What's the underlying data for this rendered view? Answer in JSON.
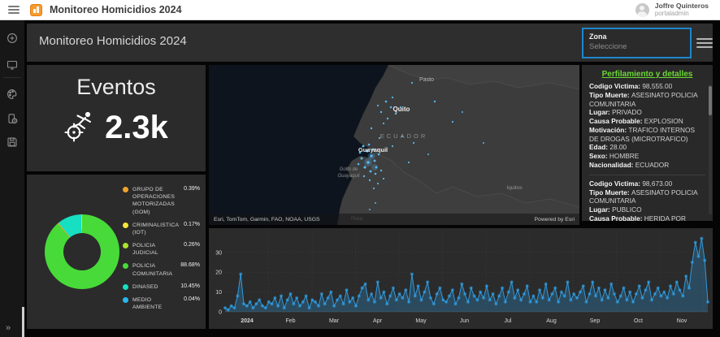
{
  "app_header": {
    "title": "Monitoreo Homicidios 2024",
    "user_name": "Joffre Quinteros",
    "user_role": "portaladmin"
  },
  "sidebar": {
    "icons": [
      "add-element",
      "desktop-view",
      "theme",
      "mobile-view",
      "save"
    ],
    "expand_glyph": "»"
  },
  "dashboard": {
    "title": "Monitoreo Homicidios 2024",
    "zona_label": "Zona",
    "zona_placeholder": "Seleccione",
    "zona_border_color": "#1d86cc"
  },
  "eventos": {
    "title": "Eventos",
    "value": "2.3k"
  },
  "map": {
    "labels": {
      "pasto": "Pasto",
      "quito": "Quito",
      "country": "ECUADOR",
      "guayaquil": "Guayaquil",
      "golfo_line1": "Golfo de",
      "golfo_line2": "Guayaquil",
      "iquitos": "Iquitos",
      "piura": "Piura"
    },
    "attribution": "Esri, TomTom, Garmin, FAO, NOAA, USGS",
    "powered_by": "Powered by Esri"
  },
  "details": {
    "title": "Perfilamiento y detalles",
    "records": [
      {
        "fields": [
          {
            "label": "Codigo Victima",
            "value": "98,555.00"
          },
          {
            "label": "Tipo Muerte",
            "value": "ASESINATO POLICIA COMUNITARIA"
          },
          {
            "label": "Lugar",
            "value": "PRIVADO"
          },
          {
            "label": "Causa Probable",
            "value": "EXPLOSION"
          },
          {
            "label": "Motivación",
            "value": "TRAFICO INTERNOS DE DROGAS (MICROTRAFICO)"
          },
          {
            "label": "Edad",
            "value": "28.00"
          },
          {
            "label": "Sexo",
            "value": "HOMBRE"
          },
          {
            "label": "Nacionalidad",
            "value": "ECUADOR"
          }
        ]
      },
      {
        "fields": [
          {
            "label": "Codigo Victima",
            "value": "98,673.00"
          },
          {
            "label": "Tipo Muerte",
            "value": "ASESINATO POLICIA COMUNITARIA"
          },
          {
            "label": "Lugar",
            "value": "PUBLICO"
          },
          {
            "label": "Causa Probable",
            "value": "HERIDA POR ARMA DE FUEGO"
          }
        ]
      }
    ]
  },
  "chart_data": [
    {
      "type": "pie",
      "donut": true,
      "title": "",
      "categories": [
        "GRUPO DE OPERACIONES MOTORIZADAS (GOM)",
        "CRIMINALISTICA (IOT)",
        "POLICIA JUDICIAL",
        "POLICIA COMUNITARIA",
        "DINASED",
        "MEDIO AMBIENTE"
      ],
      "values": [
        0.39,
        0.17,
        0.26,
        88.68,
        10.45,
        0.04
      ],
      "value_labels": [
        "0.39%",
        "0.17%",
        "0.26%",
        "88.68%",
        "10.45%",
        "0.04%"
      ],
      "colors": [
        "#f0a32b",
        "#f6e53a",
        "#abe32e",
        "#47da39",
        "#17dfc1",
        "#27b8ee"
      ],
      "legend_position": "right"
    },
    {
      "type": "line",
      "title": "",
      "area": true,
      "color": "#2e9ade",
      "x_tick_labels": [
        "2024",
        "Feb",
        "Mar",
        "Apr",
        "May",
        "Jun",
        "Jul",
        "Aug",
        "Sep",
        "Oct",
        "Nov"
      ],
      "y_ticks": [
        0,
        10,
        20,
        30
      ],
      "ylim": [
        0,
        40
      ],
      "grid": true,
      "values": [
        2,
        1,
        3,
        2,
        8,
        19,
        4,
        3,
        5,
        2,
        4,
        6,
        3,
        2,
        5,
        4,
        7,
        3,
        8,
        2,
        6,
        9,
        4,
        7,
        3,
        5,
        8,
        2,
        6,
        5,
        3,
        9,
        4,
        7,
        10,
        3,
        6,
        8,
        4,
        11,
        5,
        7,
        3,
        8,
        12,
        14,
        6,
        9,
        5,
        15,
        7,
        10,
        4,
        8,
        12,
        6,
        9,
        7,
        11,
        5,
        19,
        8,
        13,
        6,
        10,
        15,
        7,
        4,
        9,
        12,
        6,
        5,
        8,
        11,
        4,
        7,
        14,
        9,
        5,
        12,
        8,
        6,
        10,
        7,
        13,
        6,
        9,
        4,
        8,
        12,
        5,
        10,
        15,
        7,
        11,
        6,
        9,
        13,
        5,
        8,
        5,
        11,
        7,
        14,
        6,
        9,
        12,
        5,
        10,
        8,
        15,
        6,
        9,
        7,
        10,
        13,
        5,
        9,
        15,
        8,
        12,
        6,
        11,
        7,
        14,
        9,
        5,
        8,
        12,
        6,
        10,
        5,
        9,
        13,
        7,
        11,
        15,
        6,
        9,
        12,
        8,
        10,
        7,
        13,
        9,
        15,
        11,
        8,
        18,
        12,
        25,
        35,
        28,
        37,
        26,
        5
      ]
    }
  ]
}
